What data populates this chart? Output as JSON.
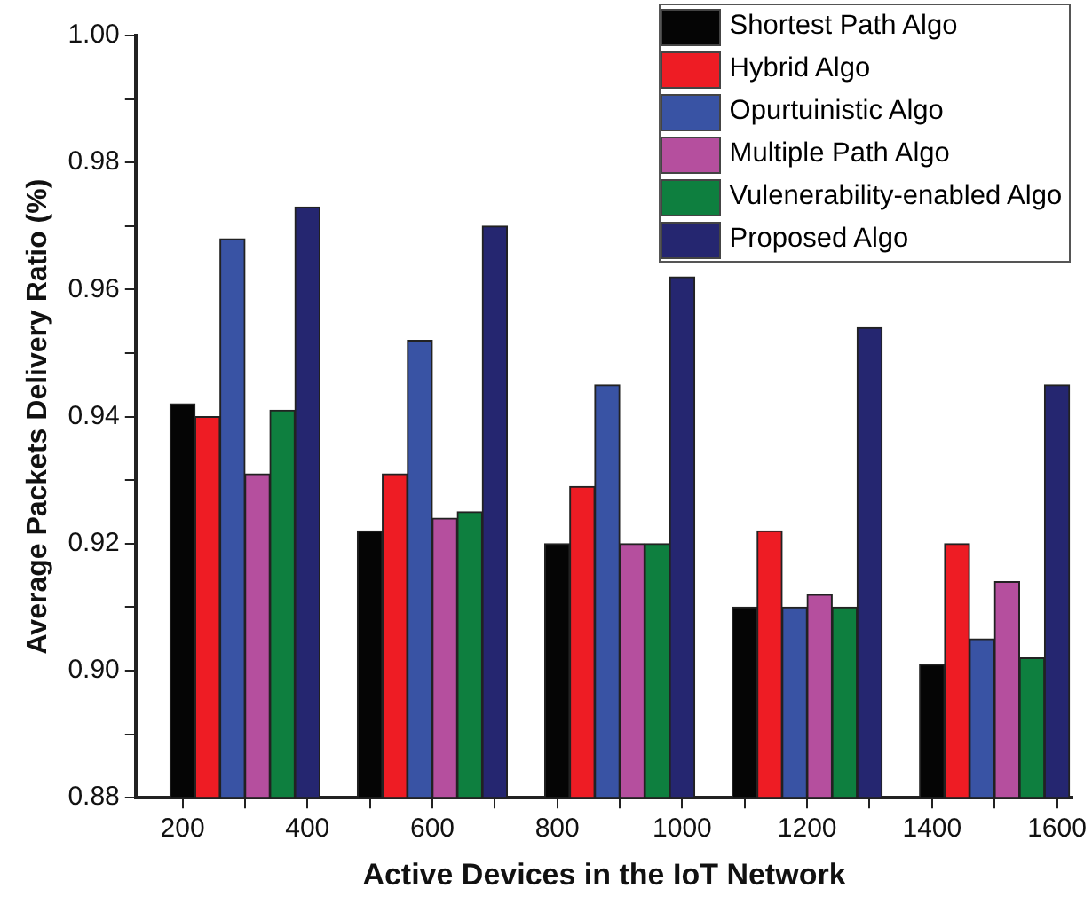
{
  "chart_data": {
    "type": "bar",
    "xlabel": "Active Devices in the IoT Network",
    "ylabel": "Average Packets Delivery Ratio (%)",
    "xlim": [
      125,
      1625
    ],
    "ylim": [
      0.88,
      1.0
    ],
    "xticks": [
      200,
      {
        "value": 300,
        "label": null
      },
      400,
      {
        "value": 500,
        "label": null
      },
      600,
      {
        "value": 700,
        "label": null
      },
      800,
      {
        "value": 900,
        "label": null
      },
      1000,
      {
        "value": 1100,
        "label": null
      },
      1200,
      {
        "value": 1300,
        "label": null
      },
      1400,
      {
        "value": 1500,
        "label": null
      },
      1600
    ],
    "yticks": [
      0.88,
      {
        "value": 0.89,
        "label": null
      },
      {
        "value": 0.9,
        "label": "0.90"
      },
      {
        "value": 0.91,
        "label": null
      },
      0.92,
      {
        "value": 0.93,
        "label": null
      },
      0.94,
      {
        "value": 0.95,
        "label": null
      },
      0.96,
      {
        "value": 0.97,
        "label": null
      },
      0.98,
      {
        "value": 0.99,
        "label": null
      },
      {
        "value": 1.0,
        "label": "1.00"
      }
    ],
    "grid": false,
    "legend": "top right",
    "series": [
      {
        "name": "Shortest Path Algo",
        "color": "#050505",
        "x": [
          200,
          500,
          800,
          1100,
          1400
        ],
        "values": [
          0.942,
          0.922,
          0.92,
          0.91,
          0.901
        ]
      },
      {
        "name": "Hybrid Algo",
        "color": "#ee1c24",
        "x": [
          240,
          540,
          840,
          1140,
          1440
        ],
        "values": [
          0.94,
          0.931,
          0.929,
          0.922,
          0.92
        ]
      },
      {
        "name": "Opurtuinistic Algo",
        "color": "#3953a4",
        "x": [
          280,
          580,
          880,
          1180,
          1480
        ],
        "values": [
          0.968,
          0.952,
          0.945,
          0.91,
          0.905
        ]
      },
      {
        "name": "Multiple Path Algo",
        "color": "#b54f9e",
        "x": [
          320,
          620,
          920,
          1220,
          1520
        ],
        "values": [
          0.931,
          0.924,
          0.92,
          0.912,
          0.914
        ]
      },
      {
        "name": "Vulenerability-enabled Algo",
        "color": "#0e7f3f",
        "x": [
          360,
          660,
          960,
          1260,
          1560
        ],
        "values": [
          0.941,
          0.925,
          0.92,
          0.91,
          0.902
        ]
      },
      {
        "name": "Proposed Algo",
        "color": "#252670",
        "x": [
          400,
          700,
          1000,
          1300,
          1600
        ],
        "values": [
          0.973,
          0.97,
          0.962,
          0.954,
          0.945
        ]
      }
    ]
  }
}
